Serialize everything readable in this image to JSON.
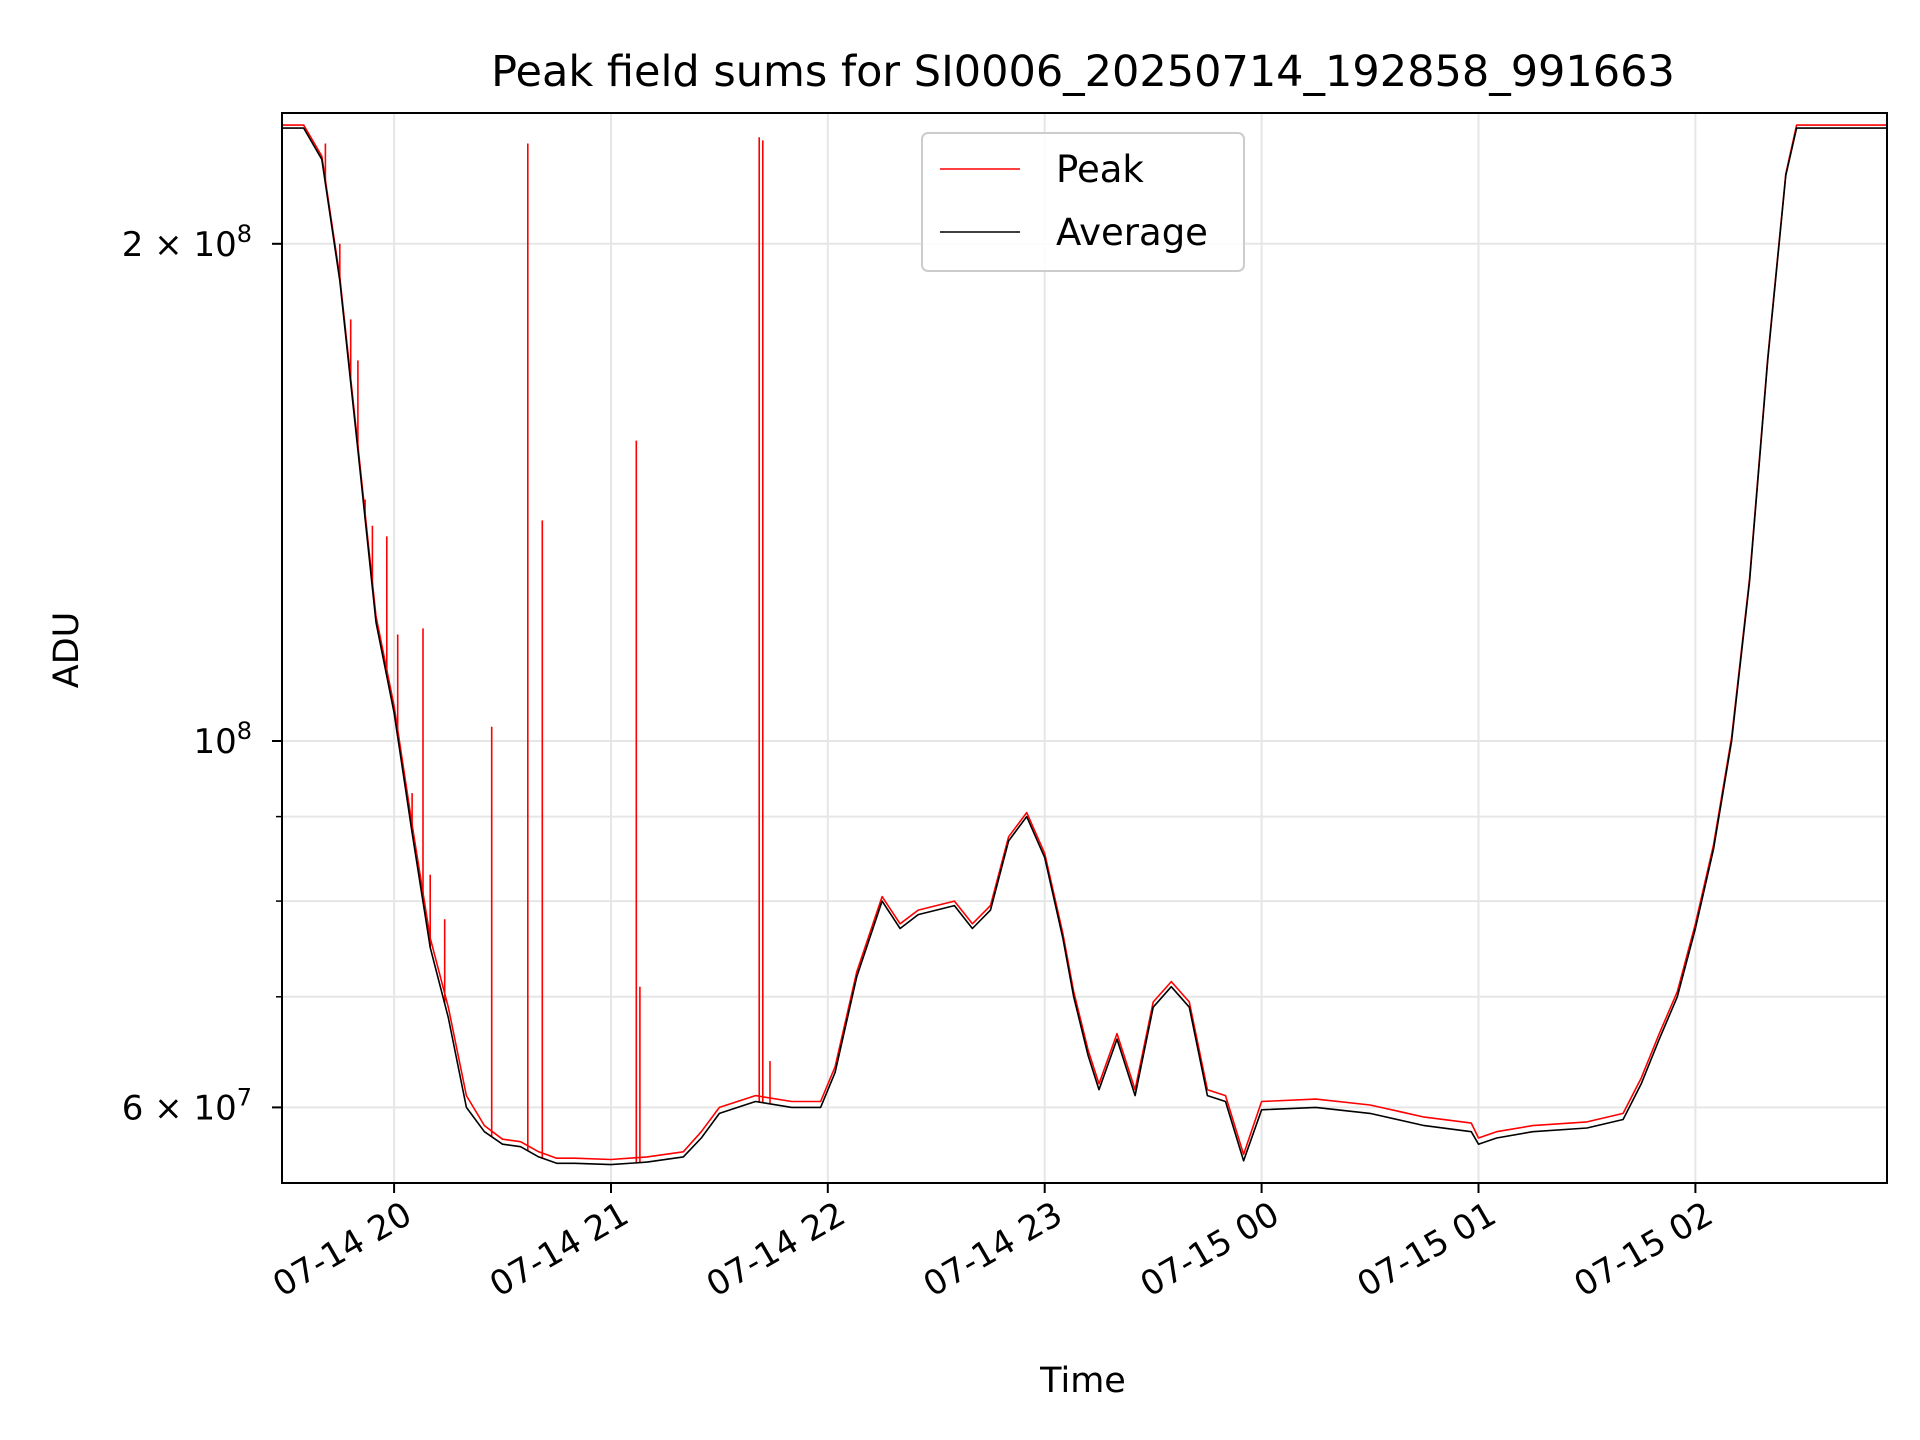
{
  "chart_data": {
    "type": "line",
    "title": "Peak field sums for SI0006_20250714_192858_991663",
    "xlabel": "Time",
    "ylabel": "ADU",
    "yscale": "log",
    "xlim": [
      "2025-07-14 19:29",
      "2025-07-15 02:53"
    ],
    "ylim": [
      54000000,
      240000000
    ],
    "grid": true,
    "legend": {
      "placement": "top-center",
      "entries": [
        "Peak",
        "Average"
      ]
    },
    "x_ticks": [
      "07-14 20",
      "07-14 21",
      "07-14 22",
      "07-14 23",
      "07-15 00",
      "07-15 01",
      "07-15 02"
    ],
    "x_tick_times": [
      "2025-07-14 20:00",
      "2025-07-14 21:00",
      "2025-07-14 22:00",
      "2025-07-14 23:00",
      "2025-07-15 00:00",
      "2025-07-15 01:00",
      "2025-07-15 02:00"
    ],
    "y_ticks_major": [
      {
        "value": 100000000,
        "base": "10",
        "exp": "8"
      },
      {
        "value": 200000000,
        "base": "2 × 10",
        "exp": "8"
      },
      {
        "value": 60000000,
        "base": "6 × 10",
        "exp": "7"
      }
    ],
    "y_ticks_minor": [
      70000000,
      80000000,
      90000000
    ],
    "colors": {
      "peak": "#ff0000",
      "average": "#000000"
    },
    "series": [
      {
        "name": "Average",
        "color": "#000000",
        "points": [
          [
            "2025-07-14 19:29",
            235000000
          ],
          [
            "2025-07-14 19:35",
            235000000
          ],
          [
            "2025-07-14 19:40",
            225000000
          ],
          [
            "2025-07-14 19:45",
            190000000
          ],
          [
            "2025-07-14 19:50",
            150000000
          ],
          [
            "2025-07-14 19:55",
            118000000
          ],
          [
            "2025-07-14 20:00",
            104000000
          ],
          [
            "2025-07-14 20:05",
            88000000
          ],
          [
            "2025-07-14 20:10",
            75000000
          ],
          [
            "2025-07-14 20:15",
            68000000
          ],
          [
            "2025-07-14 20:20",
            60000000
          ],
          [
            "2025-07-14 20:25",
            58000000
          ],
          [
            "2025-07-14 20:30",
            57000000
          ],
          [
            "2025-07-14 20:35",
            56800000
          ],
          [
            "2025-07-14 20:40",
            56000000
          ],
          [
            "2025-07-14 20:45",
            55500000
          ],
          [
            "2025-07-14 20:50",
            55500000
          ],
          [
            "2025-07-14 21:00",
            55400000
          ],
          [
            "2025-07-14 21:10",
            55600000
          ],
          [
            "2025-07-14 21:20",
            56000000
          ],
          [
            "2025-07-14 21:25",
            57500000
          ],
          [
            "2025-07-14 21:30",
            59500000
          ],
          [
            "2025-07-14 21:40",
            60500000
          ],
          [
            "2025-07-14 21:50",
            60000000
          ],
          [
            "2025-07-14 21:58",
            60000000
          ],
          [
            "2025-07-14 22:02",
            63000000
          ],
          [
            "2025-07-14 22:08",
            72000000
          ],
          [
            "2025-07-14 22:15",
            80000000
          ],
          [
            "2025-07-14 22:20",
            77000000
          ],
          [
            "2025-07-14 22:25",
            78500000
          ],
          [
            "2025-07-14 22:30",
            79000000
          ],
          [
            "2025-07-14 22:35",
            79500000
          ],
          [
            "2025-07-14 22:40",
            77000000
          ],
          [
            "2025-07-14 22:45",
            79000000
          ],
          [
            "2025-07-14 22:50",
            87000000
          ],
          [
            "2025-07-14 22:55",
            90000000
          ],
          [
            "2025-07-14 23:00",
            85000000
          ],
          [
            "2025-07-14 23:05",
            76000000
          ],
          [
            "2025-07-14 23:08",
            70000000
          ],
          [
            "2025-07-14 23:12",
            64500000
          ],
          [
            "2025-07-14 23:15",
            61500000
          ],
          [
            "2025-07-14 23:20",
            66000000
          ],
          [
            "2025-07-14 23:25",
            61000000
          ],
          [
            "2025-07-14 23:30",
            69000000
          ],
          [
            "2025-07-14 23:35",
            71000000
          ],
          [
            "2025-07-14 23:40",
            69000000
          ],
          [
            "2025-07-14 23:45",
            61000000
          ],
          [
            "2025-07-14 23:50",
            60500000
          ],
          [
            "2025-07-14 23:55",
            55700000
          ],
          [
            "2025-07-15 00:00",
            59800000
          ],
          [
            "2025-07-15 00:15",
            60000000
          ],
          [
            "2025-07-15 00:30",
            59500000
          ],
          [
            "2025-07-15 00:45",
            58500000
          ],
          [
            "2025-07-15 00:58",
            58000000
          ],
          [
            "2025-07-15 01:00",
            57000000
          ],
          [
            "2025-07-15 01:05",
            57500000
          ],
          [
            "2025-07-15 01:15",
            58000000
          ],
          [
            "2025-07-15 01:30",
            58300000
          ],
          [
            "2025-07-15 01:40",
            59000000
          ],
          [
            "2025-07-15 01:45",
            62000000
          ],
          [
            "2025-07-15 01:50",
            66000000
          ],
          [
            "2025-07-15 01:55",
            70000000
          ],
          [
            "2025-07-15 02:00",
            77000000
          ],
          [
            "2025-07-15 02:05",
            86000000
          ],
          [
            "2025-07-15 02:10",
            100000000
          ],
          [
            "2025-07-15 02:15",
            125000000
          ],
          [
            "2025-07-15 02:20",
            170000000
          ],
          [
            "2025-07-15 02:25",
            220000000
          ],
          [
            "2025-07-15 02:28",
            235000000
          ],
          [
            "2025-07-15 02:53",
            235000000
          ]
        ]
      },
      {
        "name": "Peak",
        "color": "#ff0000",
        "points": [
          [
            "2025-07-14 19:29",
            236000000
          ],
          [
            "2025-07-14 19:35",
            236000000
          ],
          [
            "2025-07-14 19:40",
            226000000
          ],
          [
            "2025-07-14 19:45",
            191000000
          ],
          [
            "2025-07-14 19:50",
            151000000
          ],
          [
            "2025-07-14 19:55",
            119000000
          ],
          [
            "2025-07-14 20:00",
            105000000
          ],
          [
            "2025-07-14 20:05",
            89000000
          ],
          [
            "2025-07-14 20:10",
            76000000
          ],
          [
            "2025-07-14 20:15",
            69000000
          ],
          [
            "2025-07-14 20:20",
            61000000
          ],
          [
            "2025-07-14 20:25",
            58500000
          ],
          [
            "2025-07-14 20:30",
            57400000
          ],
          [
            "2025-07-14 20:35",
            57200000
          ],
          [
            "2025-07-14 20:40",
            56400000
          ],
          [
            "2025-07-14 20:45",
            55900000
          ],
          [
            "2025-07-14 20:50",
            55900000
          ],
          [
            "2025-07-14 21:00",
            55800000
          ],
          [
            "2025-07-14 21:10",
            56000000
          ],
          [
            "2025-07-14 21:20",
            56400000
          ],
          [
            "2025-07-14 21:25",
            58000000
          ],
          [
            "2025-07-14 21:30",
            60000000
          ],
          [
            "2025-07-14 21:40",
            61000000
          ],
          [
            "2025-07-14 21:50",
            60500000
          ],
          [
            "2025-07-14 21:58",
            60500000
          ],
          [
            "2025-07-14 22:02",
            63500000
          ],
          [
            "2025-07-14 22:08",
            72500000
          ],
          [
            "2025-07-14 22:15",
            80500000
          ],
          [
            "2025-07-14 22:20",
            77500000
          ],
          [
            "2025-07-14 22:25",
            79000000
          ],
          [
            "2025-07-14 22:30",
            79500000
          ],
          [
            "2025-07-14 22:35",
            80000000
          ],
          [
            "2025-07-14 22:40",
            77500000
          ],
          [
            "2025-07-14 22:45",
            79500000
          ],
          [
            "2025-07-14 22:50",
            87500000
          ],
          [
            "2025-07-14 22:55",
            90500000
          ],
          [
            "2025-07-14 23:00",
            85500000
          ],
          [
            "2025-07-14 23:05",
            76500000
          ],
          [
            "2025-07-14 23:08",
            70500000
          ],
          [
            "2025-07-14 23:12",
            65000000
          ],
          [
            "2025-07-14 23:15",
            62000000
          ],
          [
            "2025-07-14 23:20",
            66500000
          ],
          [
            "2025-07-14 23:25",
            61500000
          ],
          [
            "2025-07-14 23:30",
            69500000
          ],
          [
            "2025-07-14 23:35",
            71500000
          ],
          [
            "2025-07-14 23:40",
            69500000
          ],
          [
            "2025-07-14 23:45",
            61500000
          ],
          [
            "2025-07-14 23:50",
            61000000
          ],
          [
            "2025-07-14 23:55",
            56200000
          ],
          [
            "2025-07-15 00:00",
            60500000
          ],
          [
            "2025-07-15 00:15",
            60700000
          ],
          [
            "2025-07-15 00:30",
            60200000
          ],
          [
            "2025-07-15 00:45",
            59200000
          ],
          [
            "2025-07-15 00:58",
            58700000
          ],
          [
            "2025-07-15 01:00",
            57500000
          ],
          [
            "2025-07-15 01:05",
            58000000
          ],
          [
            "2025-07-15 01:15",
            58500000
          ],
          [
            "2025-07-15 01:30",
            58800000
          ],
          [
            "2025-07-15 01:40",
            59500000
          ],
          [
            "2025-07-15 01:45",
            62500000
          ],
          [
            "2025-07-15 01:50",
            66500000
          ],
          [
            "2025-07-15 01:55",
            70500000
          ],
          [
            "2025-07-15 02:00",
            77500000
          ],
          [
            "2025-07-15 02:05",
            86500000
          ],
          [
            "2025-07-15 02:10",
            100500000
          ],
          [
            "2025-07-15 02:15",
            125500000
          ],
          [
            "2025-07-15 02:20",
            170500000
          ],
          [
            "2025-07-15 02:25",
            220500000
          ],
          [
            "2025-07-15 02:28",
            236000000
          ],
          [
            "2025-07-15 02:53",
            236000000
          ]
        ],
        "spikes": [
          [
            "2025-07-14 19:41",
            230000000
          ],
          [
            "2025-07-14 19:45",
            200000000
          ],
          [
            "2025-07-14 19:48",
            180000000
          ],
          [
            "2025-07-14 19:50",
            170000000
          ],
          [
            "2025-07-14 19:52",
            140000000
          ],
          [
            "2025-07-14 19:54",
            135000000
          ],
          [
            "2025-07-14 19:58",
            133000000
          ],
          [
            "2025-07-14 20:01",
            116000000
          ],
          [
            "2025-07-14 20:05",
            93000000
          ],
          [
            "2025-07-14 20:08",
            117000000
          ],
          [
            "2025-07-14 20:10",
            83000000
          ],
          [
            "2025-07-14 20:14",
            78000000
          ],
          [
            "2025-07-14 20:27",
            102000000
          ],
          [
            "2025-07-14 20:37",
            230000000
          ],
          [
            "2025-07-14 20:41",
            136000000
          ],
          [
            "2025-07-14 21:07",
            152000000
          ],
          [
            "2025-07-14 21:08",
            71000000
          ],
          [
            "2025-07-14 21:41",
            232000000
          ],
          [
            "2025-07-14 21:42",
            231000000
          ],
          [
            "2025-07-14 21:44",
            64000000
          ]
        ]
      }
    ]
  }
}
